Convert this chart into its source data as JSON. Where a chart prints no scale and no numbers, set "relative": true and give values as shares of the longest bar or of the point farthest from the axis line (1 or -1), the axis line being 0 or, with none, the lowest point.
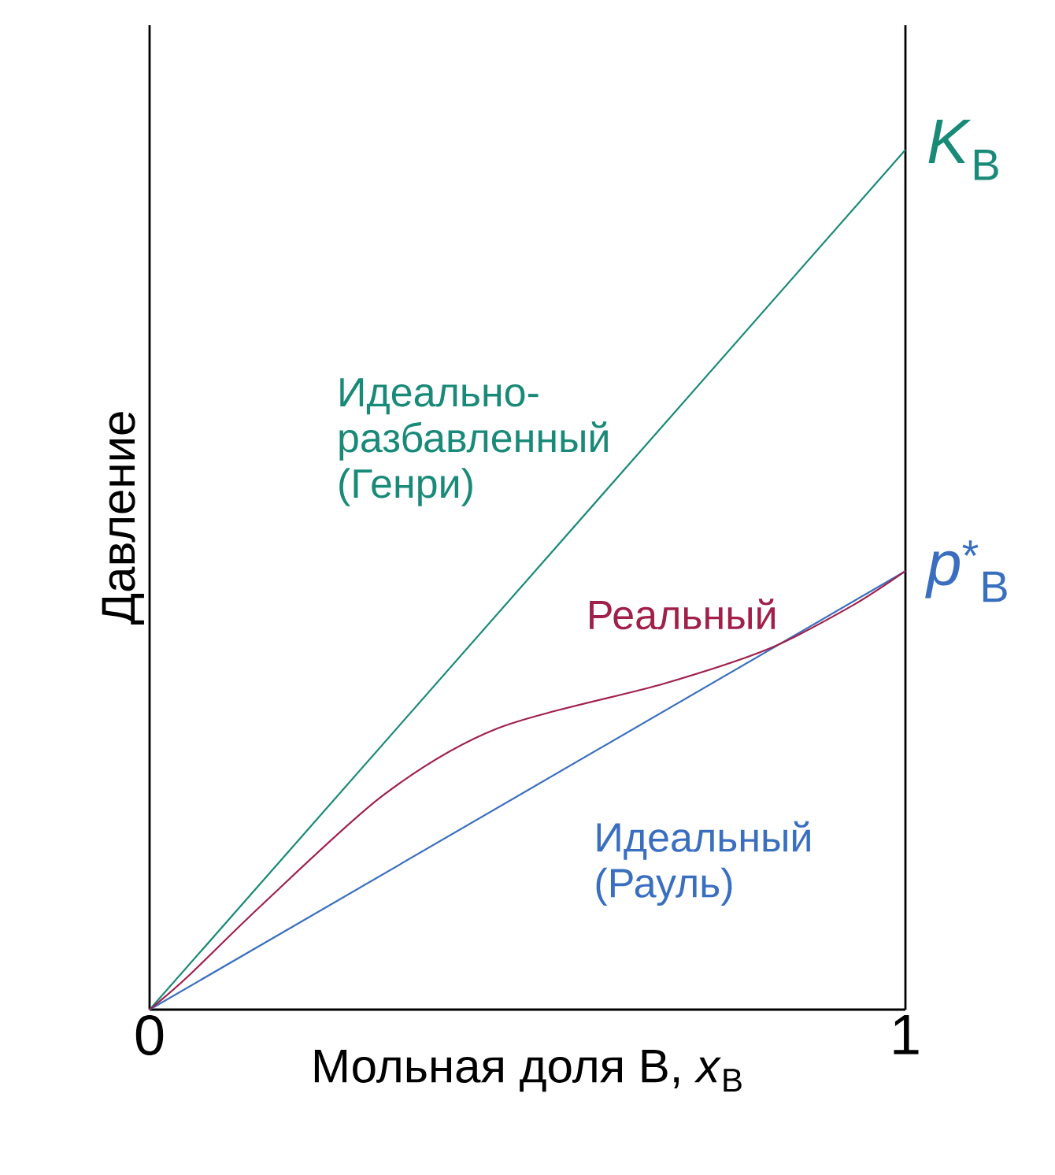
{
  "chart_data": {
    "type": "line",
    "relative": true,
    "xlabel": "Мольная доля В, *x*$_{В}$",
    "ylabel": "Давление",
    "xlim": [
      0,
      1
    ],
    "xticks": [
      0,
      1
    ],
    "marker": "none",
    "line_style": "solid",
    "series": [
      {
        "name": "Идеально-разбавленный (Генри)",
        "color": "#1a8a78",
        "x": [
          0,
          1
        ],
        "values": [
          0,
          1
        ]
      },
      {
        "name": "Идеальный (Рауль)",
        "color": "#3a6fc0",
        "x": [
          0,
          1
        ],
        "values": [
          0,
          0.51
        ]
      },
      {
        "name": "Реальный",
        "color": "#a0204a",
        "x": [
          0,
          0.05,
          0.15,
          0.31,
          0.46,
          0.68,
          0.82,
          0.93,
          1
        ],
        "values": [
          0,
          0.038,
          0.123,
          0.25,
          0.327,
          0.379,
          0.42,
          0.47,
          0.51
        ]
      }
    ],
    "annotations": [
      {
        "text": "*K*$_{В}$",
        "x": 1,
        "y": 1
      },
      {
        "text": "*p*$^{*}$$_{В}$",
        "x": 1,
        "y": 0.51
      }
    ]
  }
}
